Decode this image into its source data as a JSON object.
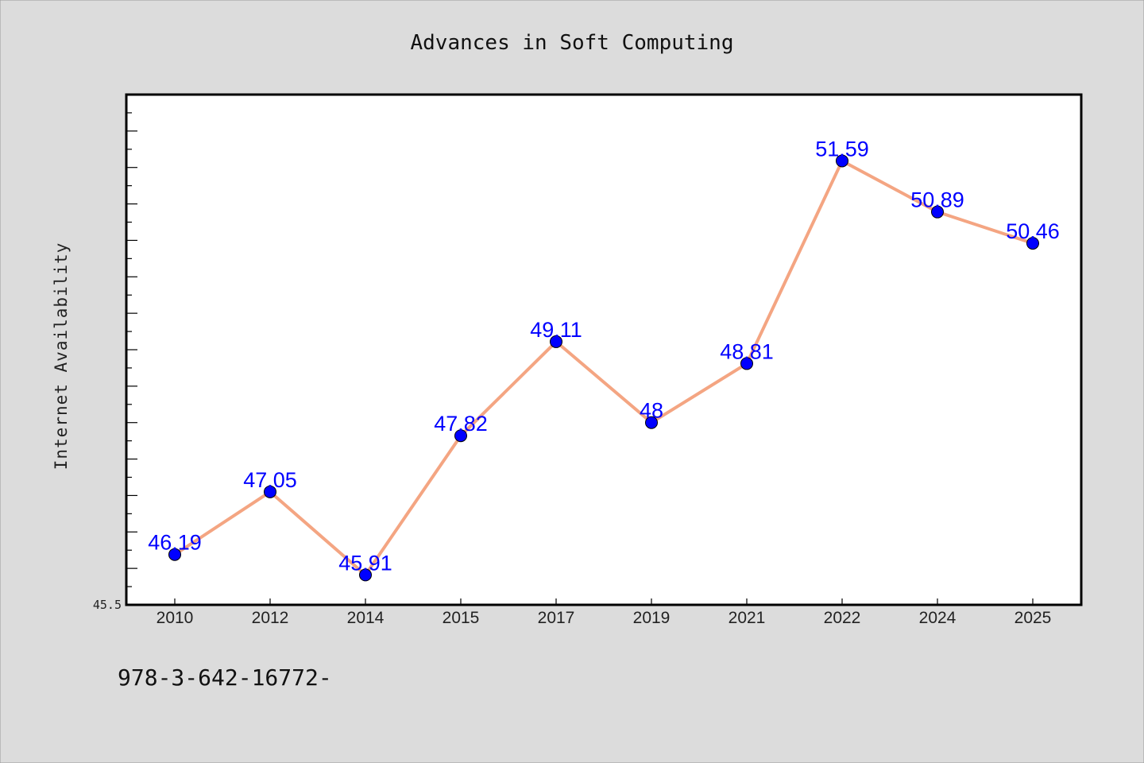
{
  "colors": {
    "background": "#dcdcdc",
    "plot_background": "#ffffff",
    "line": "#f4a582",
    "marker": "#0000ff",
    "label": "#0000ff"
  },
  "footnote": "978-3-642-16772-",
  "chart_data": {
    "type": "line",
    "title": "Advances in Soft Computing",
    "xlabel": "",
    "ylabel": "Internet Availability",
    "categories": [
      "2010",
      "2012",
      "2014",
      "2015",
      "2017",
      "2019",
      "2021",
      "2022",
      "2024",
      "2025"
    ],
    "series": [
      {
        "values": [
          46.19,
          47.05,
          45.91,
          47.82,
          49.11,
          48,
          48.81,
          51.59,
          50.89,
          50.46
        ],
        "labels": [
          "46.19",
          "47.05",
          "45.91",
          "47.82",
          "49.11",
          "48",
          "48.81",
          "51.59",
          "50.89",
          "50.46"
        ]
      }
    ],
    "ylim": [
      45.5,
      52.5
    ],
    "ytick_labels": [
      "45.5"
    ],
    "grid": false,
    "legend": "none"
  }
}
